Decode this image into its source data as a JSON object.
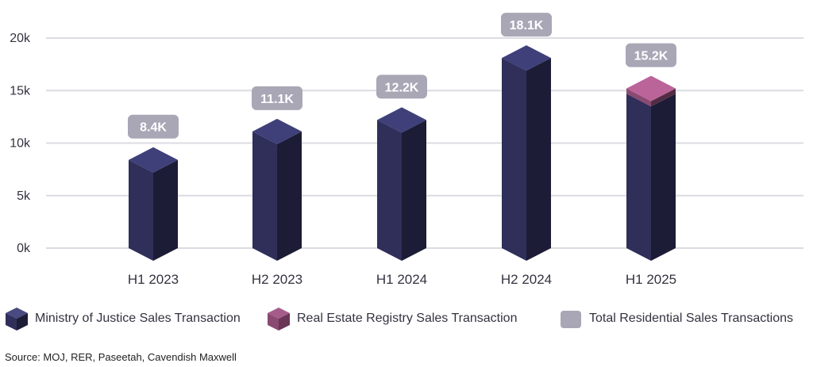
{
  "chart_data": {
    "type": "bar",
    "categories": [
      "H1 2023",
      "H2 2023",
      "H1 2024",
      "H2 2024",
      "H1 2025"
    ],
    "series": [
      {
        "name": "Ministry of Justice Sales Transaction",
        "values": [
          8400,
          11100,
          12200,
          18100,
          14700
        ],
        "color": "#2f2f5a"
      },
      {
        "name": "Real Estate Registry Sales Transaction",
        "values": [
          0,
          0,
          0,
          0,
          500
        ],
        "color": "#8a4a72"
      }
    ],
    "totals": {
      "name": "Total Residential Sales Transactions",
      "values": [
        8400,
        11100,
        12200,
        18100,
        15200
      ],
      "color": "#a9a7b6"
    },
    "data_labels": [
      "8.4K",
      "11.1K",
      "12.2K",
      "18.1K",
      "15.2K"
    ],
    "ytick_labels": [
      "0k",
      "5k",
      "10k",
      "15k",
      "20k"
    ],
    "yticks": [
      0,
      5000,
      10000,
      15000,
      20000
    ],
    "ylim": [
      0,
      20000
    ],
    "grid": true,
    "legend_position": "bottom"
  },
  "legend": [
    {
      "label": "Ministry of Justice Sales Transaction",
      "icon": "cube-icon",
      "color": "#2f2f5a"
    },
    {
      "label": "Real Estate Registry Sales Transaction",
      "icon": "cube-icon",
      "color": "#8a4a72"
    },
    {
      "label": "Total Residential Sales Transactions",
      "icon": "rounded-square-icon",
      "color": "#a9a7b6"
    }
  ],
  "source": "Source: MOJ, RER, Paseetah, Cavendish Maxwell"
}
